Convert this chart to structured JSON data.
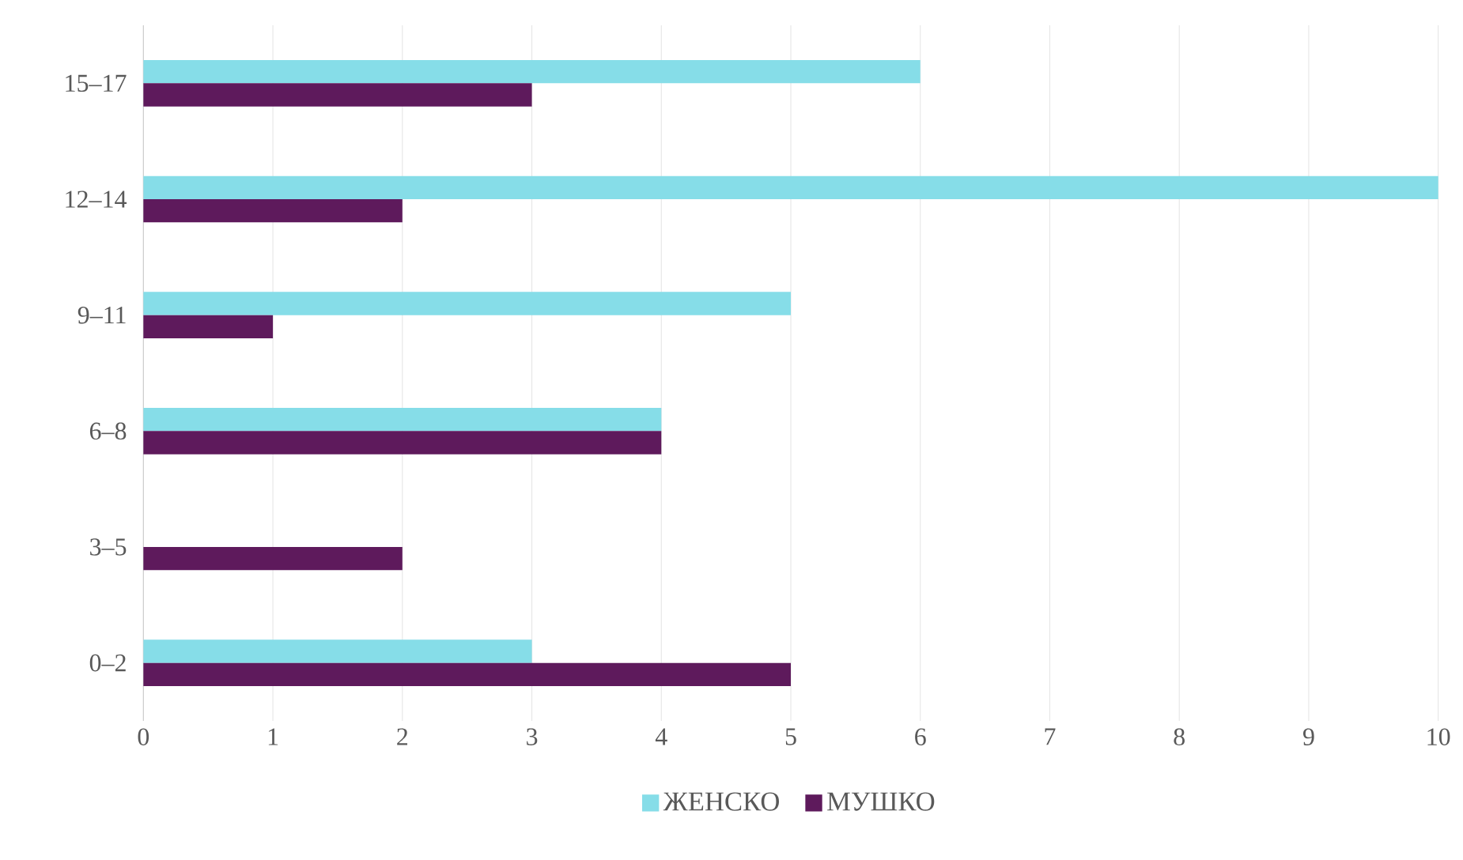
{
  "chart_data": {
    "type": "bar",
    "orientation": "horizontal",
    "categories": [
      "15–17",
      "12–14",
      "9–11",
      "6–8",
      "3–5",
      "0–2"
    ],
    "series": [
      {
        "name": "ЖЕНСКО",
        "color": "#86dde8",
        "values": [
          6,
          10,
          5,
          4,
          0,
          3
        ]
      },
      {
        "name": "МУШКО",
        "color": "#5e1a5c",
        "values": [
          3,
          2,
          1,
          4,
          2,
          5
        ]
      }
    ],
    "xlim": [
      0,
      10
    ],
    "xticks": [
      0,
      1,
      2,
      3,
      4,
      5,
      6,
      7,
      8,
      9,
      10
    ],
    "grid": "x",
    "legend": "bottom"
  }
}
